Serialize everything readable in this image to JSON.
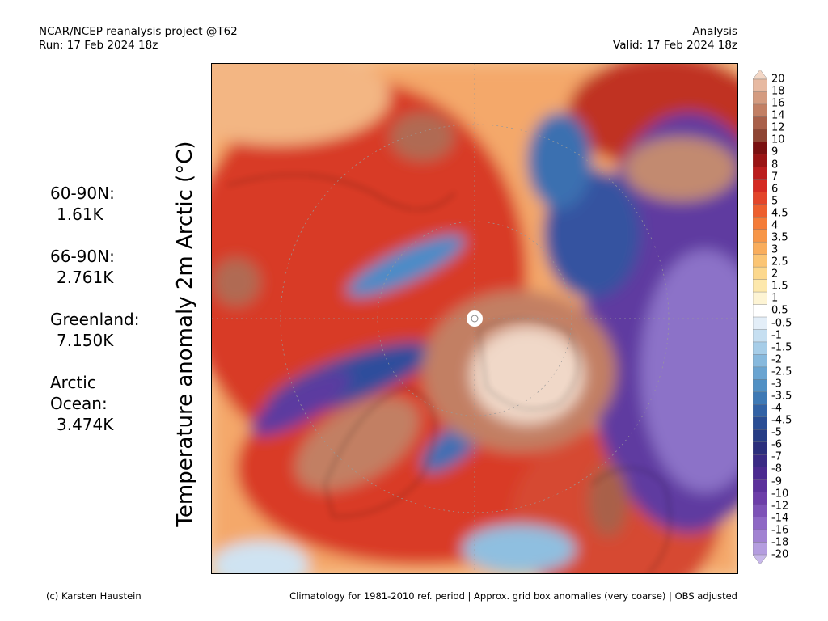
{
  "header": {
    "project": "NCAR/NCEP reanalysis project @T62",
    "run": "Run: 17 Feb 2024 18z",
    "analysis": "Analysis",
    "valid": "Valid: 17 Feb 2024 18z"
  },
  "vertical_title": "Temperature anomaly 2m Arctic (°C)",
  "stats": [
    {
      "label": "60-90N:",
      "value": "1.61K"
    },
    {
      "label": "66-90N:",
      "value": "2.761K"
    },
    {
      "label": "Greenland:",
      "value": "7.150K"
    },
    {
      "label": "Arctic",
      "label2": "Ocean:",
      "value": "3.474K"
    }
  ],
  "colorbar": {
    "ticks": [
      "20",
      "18",
      "16",
      "14",
      "12",
      "10",
      "9",
      "8",
      "7",
      "6",
      "5",
      "4.5",
      "4",
      "3.5",
      "3",
      "2.5",
      "2",
      "1.5",
      "1",
      "0.5",
      "-0.5",
      "-1",
      "-1.5",
      "-2",
      "-2.5",
      "-3",
      "-3.5",
      "-4",
      "-4.5",
      "-5",
      "-6",
      "-7",
      "-8",
      "-9",
      "-10",
      "-12",
      "-14",
      "-16",
      "-18",
      "-20"
    ],
    "colors": [
      "#f3d7c6",
      "#e7b9a1",
      "#d49b80",
      "#c27f64",
      "#a9604a",
      "#8f4533",
      "#7a1010",
      "#9a1414",
      "#bb1d1d",
      "#d52a22",
      "#e3452a",
      "#ed5f2e",
      "#f47c38",
      "#f79648",
      "#f9ad5c",
      "#fbc574",
      "#fcd88d",
      "#fde8ac",
      "#fdf4d4",
      "#ffffff",
      "#e3eef8",
      "#c6dff1",
      "#a6cde8",
      "#87b9dd",
      "#6aa4d1",
      "#5190c4",
      "#3e79b5",
      "#3262a5",
      "#2a4d94",
      "#263c85",
      "#2b2e7c",
      "#3a2a85",
      "#4b2a90",
      "#5c319c",
      "#6d3ea9",
      "#7d52b7",
      "#8e68c5",
      "#a182d2",
      "#b49ddf",
      "#c8b8ea"
    ]
  },
  "footer": {
    "credit": "(c) Karsten Haustein",
    "note": "Climatology for 1981-2010 ref. period | Approx. grid box anomalies (very coarse) | OBS adjusted"
  }
}
